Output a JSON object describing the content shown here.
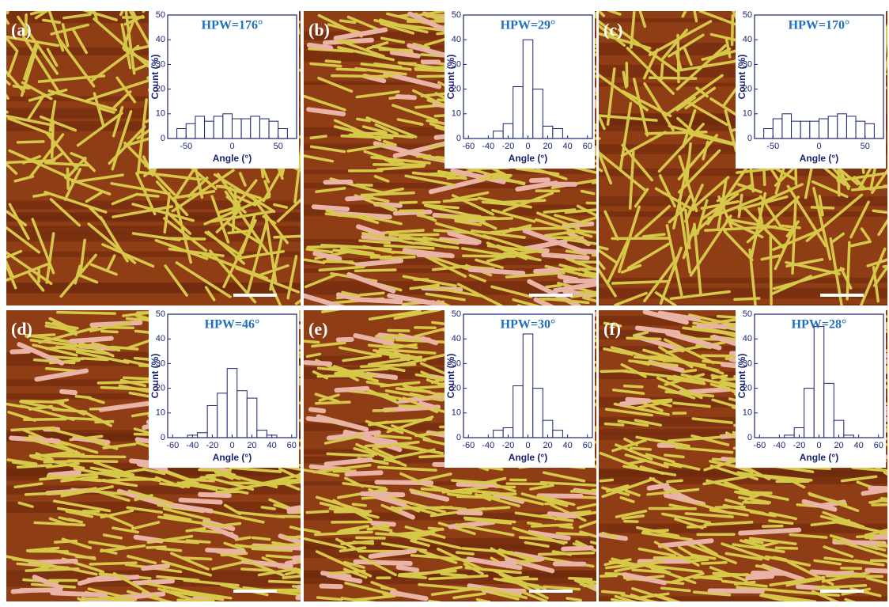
{
  "chart_data": [
    {
      "type": "histogram",
      "panel_label": "(a)",
      "title": "HPW=176°",
      "x_label": "Angle (°)",
      "y_label": "Count (%)",
      "bins": [
        -60,
        -50,
        -40,
        -30,
        -20,
        -10,
        0,
        10,
        20,
        30,
        40,
        50,
        60
      ],
      "values": [
        4,
        6,
        9,
        7,
        9,
        10,
        8,
        8,
        9,
        8,
        7,
        4
      ],
      "xlim": [
        -70,
        70
      ],
      "xticks": [
        -50,
        0,
        50
      ],
      "ylim": [
        0,
        50
      ],
      "yticks": [
        0,
        10,
        20,
        30,
        40,
        50
      ],
      "color": "#ffffff"
    },
    {
      "type": "histogram",
      "panel_label": "(b)",
      "title": "HPW=29°",
      "x_label": "Angle (°)",
      "y_label": "Count (%)",
      "bins": [
        -35,
        -25,
        -15,
        -5,
        5,
        15,
        25,
        35
      ],
      "values": [
        3,
        6,
        21,
        40,
        20,
        5,
        4
      ],
      "xlim": [
        -65,
        65
      ],
      "xticks": [
        -60,
        -40,
        -20,
        0,
        20,
        40,
        60
      ],
      "ylim": [
        0,
        50
      ],
      "yticks": [
        0,
        10,
        20,
        30,
        40,
        50
      ],
      "color": "#ffffff"
    },
    {
      "type": "histogram",
      "panel_label": "(c)",
      "title": "HPW=170°",
      "x_label": "Angle (°)",
      "y_label": "Count (%)",
      "bins": [
        -60,
        -50,
        -40,
        -30,
        -20,
        -10,
        0,
        10,
        20,
        30,
        40,
        50,
        60
      ],
      "values": [
        4,
        8,
        10,
        7,
        7,
        7,
        8,
        9,
        10,
        9,
        7,
        6
      ],
      "xlim": [
        -70,
        70
      ],
      "xticks": [
        -50,
        0,
        50
      ],
      "ylim": [
        0,
        50
      ],
      "yticks": [
        0,
        10,
        20,
        30,
        40,
        50
      ],
      "color": "#ffffff"
    },
    {
      "type": "histogram",
      "panel_label": "(d)",
      "title": "HPW=46°",
      "x_label": "Angle (°)",
      "y_label": "Count (%)",
      "bins": [
        -45,
        -35,
        -25,
        -15,
        -5,
        5,
        15,
        25,
        35,
        45
      ],
      "values": [
        1,
        2,
        13,
        18,
        28,
        19,
        16,
        3,
        1
      ],
      "xlim": [
        -65,
        65
      ],
      "xticks": [
        -60,
        -40,
        -20,
        0,
        20,
        40,
        60
      ],
      "ylim": [
        0,
        50
      ],
      "yticks": [
        0,
        10,
        20,
        30,
        40,
        50
      ],
      "color": "#ffffff"
    },
    {
      "type": "histogram",
      "panel_label": "(e)",
      "title": "HPW=30°",
      "x_label": "Angle (°)",
      "y_label": "Count (%)",
      "bins": [
        -35,
        -25,
        -15,
        -5,
        5,
        15,
        25,
        35
      ],
      "values": [
        3,
        4,
        21,
        42,
        20,
        7,
        3
      ],
      "xlim": [
        -65,
        65
      ],
      "xticks": [
        -60,
        -40,
        -20,
        0,
        20,
        40,
        60
      ],
      "ylim": [
        0,
        50
      ],
      "yticks": [
        0,
        10,
        20,
        30,
        40,
        50
      ],
      "color": "#ffffff"
    },
    {
      "type": "histogram",
      "panel_label": "(f)",
      "title": "HPW=28°",
      "x_label": "Angle (°)",
      "y_label": "Count (%)",
      "bins": [
        -35,
        -25,
        -15,
        -5,
        5,
        15,
        25,
        35
      ],
      "values": [
        1,
        4,
        20,
        45,
        22,
        7,
        1
      ],
      "xlim": [
        -65,
        65
      ],
      "xticks": [
        -60,
        -40,
        -20,
        0,
        20,
        40,
        60
      ],
      "ylim": [
        0,
        50
      ],
      "yticks": [
        0,
        10,
        20,
        30,
        40,
        50
      ],
      "color": "#ffffff"
    }
  ]
}
